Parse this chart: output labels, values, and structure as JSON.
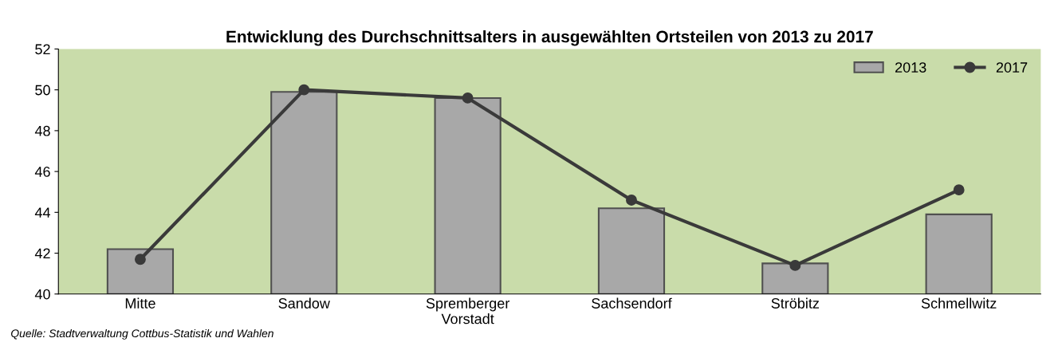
{
  "chart_data": {
    "type": "bar",
    "title": "Entwicklung des Durchschnittsalters in ausgewählten Ortsteilen von 2013 zu 2017",
    "categories": [
      "Mitte",
      "Sandow",
      "Spremberger\nVorstadt",
      "Sachsendorf",
      "Ströbitz",
      "Schmellwitz"
    ],
    "series": [
      {
        "name": "2013",
        "color": "#a8a8a8",
        "values": [
          42.2,
          49.9,
          49.6,
          44.2,
          41.5,
          43.9
        ]
      },
      {
        "name": "2017",
        "type": "line",
        "color": "#3a3a3a",
        "marker": "circle",
        "values": [
          41.7,
          50.0,
          49.6,
          44.6,
          41.4,
          45.1
        ]
      }
    ],
    "ylim": [
      40,
      52
    ],
    "yticks": [
      40,
      42,
      44,
      46,
      48,
      50,
      52
    ],
    "grid": false,
    "legend": "top right",
    "annotations": [
      "Quelle: Stadtverwaltung Cottbus-Statistik und Wahlen"
    ]
  }
}
